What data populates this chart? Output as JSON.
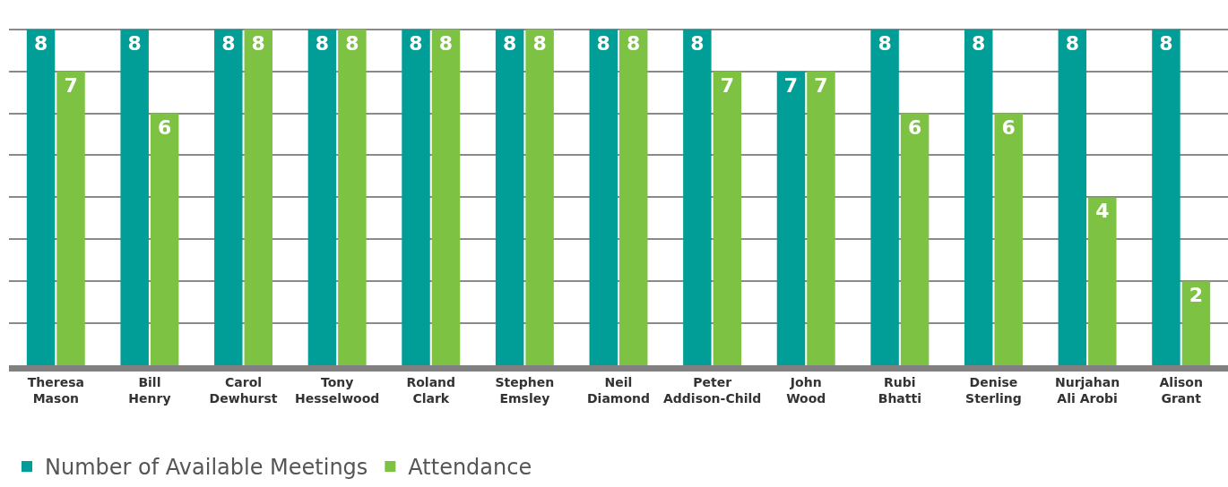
{
  "chart_data": {
    "type": "bar",
    "categories": [
      "Theresa Mason",
      "Bill Henry",
      "Carol Dewhurst",
      "Tony Hesselwood",
      "Roland Clark",
      "Stephen Emsley",
      "Neil Diamond",
      "Peter Addison-Child",
      "John Wood",
      "Rubi Bhatti",
      "Denise Sterling",
      "Nurjahan Ali Arobi",
      "Alison Grant"
    ],
    "series": [
      {
        "name": "Number of Available Meetings",
        "color": "#009e96",
        "values": [
          8,
          8,
          8,
          8,
          8,
          8,
          8,
          8,
          7,
          8,
          8,
          8,
          8
        ]
      },
      {
        "name": "Attendance",
        "color": "#7dc242",
        "values": [
          7,
          6,
          8,
          8,
          8,
          8,
          8,
          7,
          7,
          6,
          6,
          4,
          2
        ]
      }
    ],
    "grid": "y",
    "legend": "bottom left",
    "data_labels": true,
    "tick_labels": "x"
  }
}
